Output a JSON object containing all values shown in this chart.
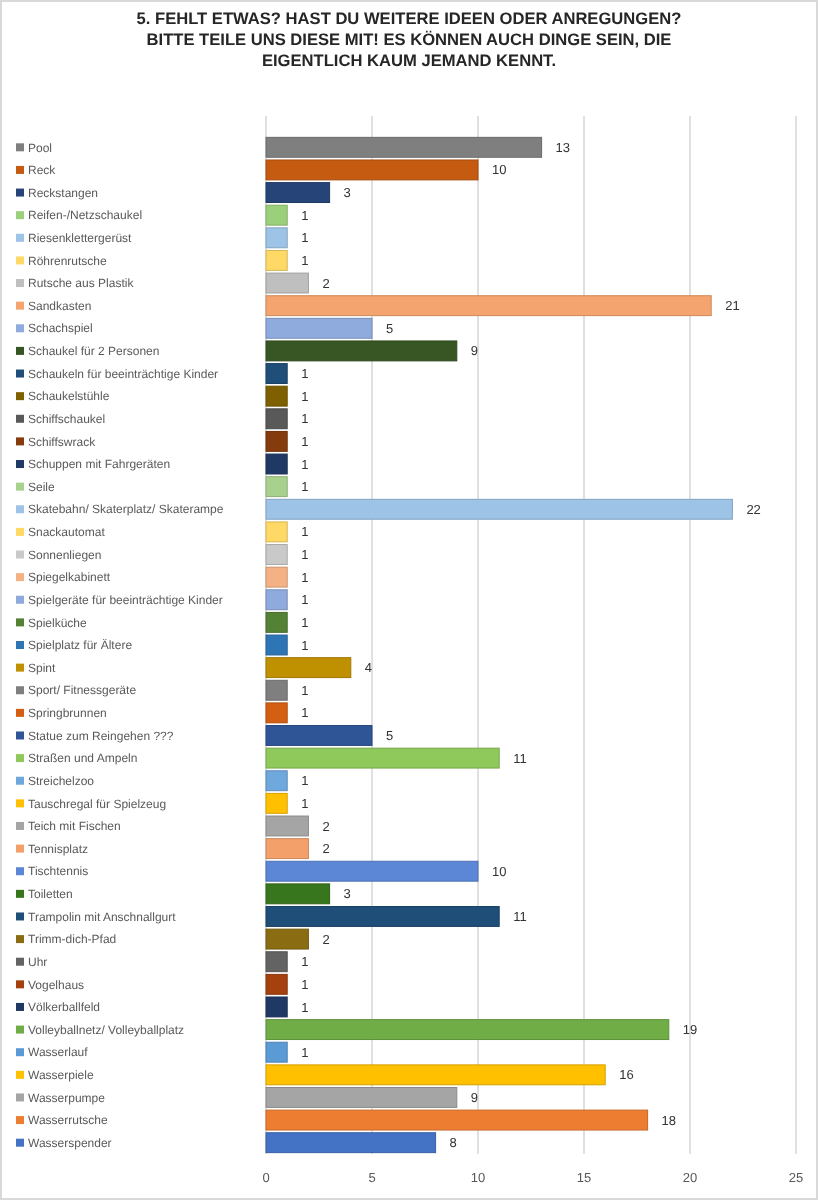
{
  "chart_data": {
    "type": "bar",
    "orientation": "horizontal",
    "title": "5. FEHLT ETWAS? HAST DU WEITERE IDEEN ODER ANREGUNGEN? BITTE TEILE UNS DIESE MIT! ES KÖNNEN AUCH DINGE SEIN, DIE EIGENTLICH KAUM JEMAND KENNT.",
    "categories": [
      "Pool",
      "Reck",
      "Reckstangen",
      "Reifen-/Netzschaukel",
      "Riesenklettergerüst",
      "Röhrenrutsche",
      "Rutsche aus Plastik",
      "Sandkasten",
      "Schachspiel",
      "Schaukel für 2 Personen",
      "Schaukeln für beeinträchtige Kinder",
      "Schaukelstühle",
      "Schiffschaukel",
      "Schiffswrack",
      "Schuppen mit Fahrgeräten",
      "Seile",
      "Skatebahn/ Skaterplatz/ Skaterampe",
      "Snackautomat",
      "Sonnenliegen",
      "Spiegelkabinett",
      "Spielgeräte für beeinträchtige Kinder",
      "Spielküche",
      "Spielplatz für Ältere",
      "Spint",
      "Sport/ Fitnessgeräte",
      "Springbrunnen",
      "Statue zum Reingehen ???",
      "Straßen und Ampeln",
      "Streichelzoo",
      "Tauschregal für Spielzeug",
      "Teich mit Fischen",
      "Tennisplatz",
      "Tischtennis",
      "Toiletten",
      "Trampolin mit Anschnallgurt",
      "Trimm-dich-Pfad",
      "Uhr",
      "Vogelhaus",
      "Völkerballfeld",
      "Volleyballnetz/ Volleyballplatz",
      "Wasserlauf",
      "Wasserpiele",
      "Wasserpumpe",
      "Wasserrutsche",
      "Wasserspender"
    ],
    "values": [
      13,
      10,
      3,
      1,
      1,
      1,
      2,
      21,
      5,
      9,
      1,
      1,
      1,
      1,
      1,
      1,
      22,
      1,
      1,
      1,
      1,
      1,
      1,
      4,
      1,
      1,
      5,
      11,
      1,
      1,
      2,
      2,
      10,
      3,
      11,
      2,
      1,
      1,
      1,
      19,
      1,
      16,
      9,
      18,
      8
    ],
    "colors": [
      "#7f7f7f",
      "#c55a11",
      "#264478",
      "#9bd07a",
      "#9dc3e6",
      "#ffd966",
      "#bfbfbf",
      "#f4a46e",
      "#8faadc",
      "#375623",
      "#1f4e79",
      "#7f6000",
      "#595959",
      "#843c0c",
      "#203864",
      "#a9d18e",
      "#9dc3e6",
      "#ffd966",
      "#c9c9c9",
      "#f4b183",
      "#8faadc",
      "#548235",
      "#2e75b6",
      "#bf9000",
      "#7f7f7f",
      "#d35f12",
      "#2f5597",
      "#8fc95b",
      "#6fa8dc",
      "#ffc000",
      "#a5a5a5",
      "#f4a06a",
      "#5b87d6",
      "#38761d",
      "#1f4e79",
      "#8a6d12",
      "#636363",
      "#a5400f",
      "#203864",
      "#70ad47",
      "#5b9bd5",
      "#ffc000",
      "#a5a5a5",
      "#ed7d31",
      "#4472c4"
    ],
    "xlim": [
      0,
      25
    ],
    "xticks": [
      0,
      5,
      10,
      15,
      20,
      25
    ],
    "grid": "x",
    "data_labels": true
  }
}
